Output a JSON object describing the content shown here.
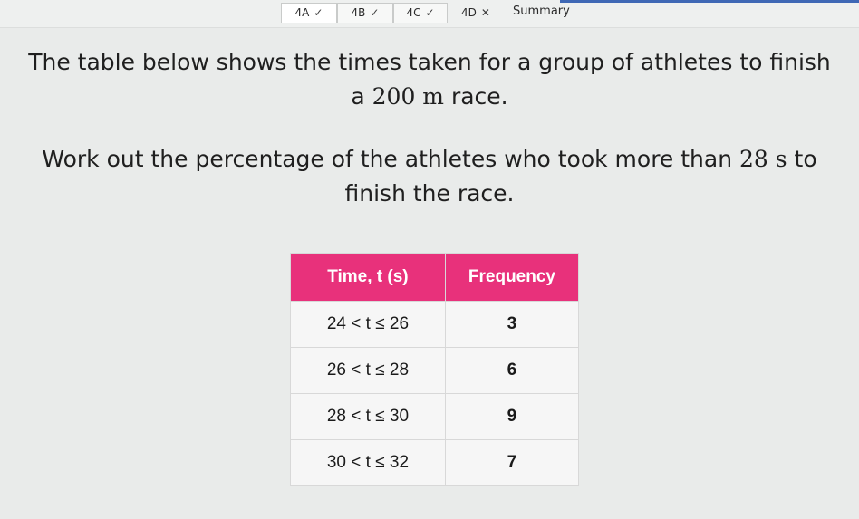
{
  "tabs": [
    {
      "label": "4A",
      "mark": "✓",
      "active": true
    },
    {
      "label": "4B",
      "mark": "✓",
      "active": false
    },
    {
      "label": "4C",
      "mark": "✓",
      "active": false
    },
    {
      "label": "4D",
      "mark": "✕",
      "active": false
    }
  ],
  "summary_label": "Summary",
  "question": {
    "line1": "The table below shows the times taken for a group of athletes to finish",
    "line2_pre": "a ",
    "line2_math": "200 m",
    "line2_post": " race.",
    "line3_pre": "Work out the percentage of the athletes who took more than ",
    "line3_math": "28 s",
    "line3_post": " to",
    "line4": "finish the race."
  },
  "table": {
    "headers": [
      "Time, t (s)",
      "Frequency"
    ],
    "rows": [
      {
        "time": "24 < t ≤ 26",
        "frequency": "3"
      },
      {
        "time": "26 < t ≤ 28",
        "frequency": "6"
      },
      {
        "time": "28 < t ≤ 30",
        "frequency": "9"
      },
      {
        "time": "30 < t ≤ 32",
        "frequency": "7"
      }
    ]
  },
  "colors": {
    "header": "#e8317b",
    "background": "#e9ebea",
    "accent": "#3f68b5"
  }
}
